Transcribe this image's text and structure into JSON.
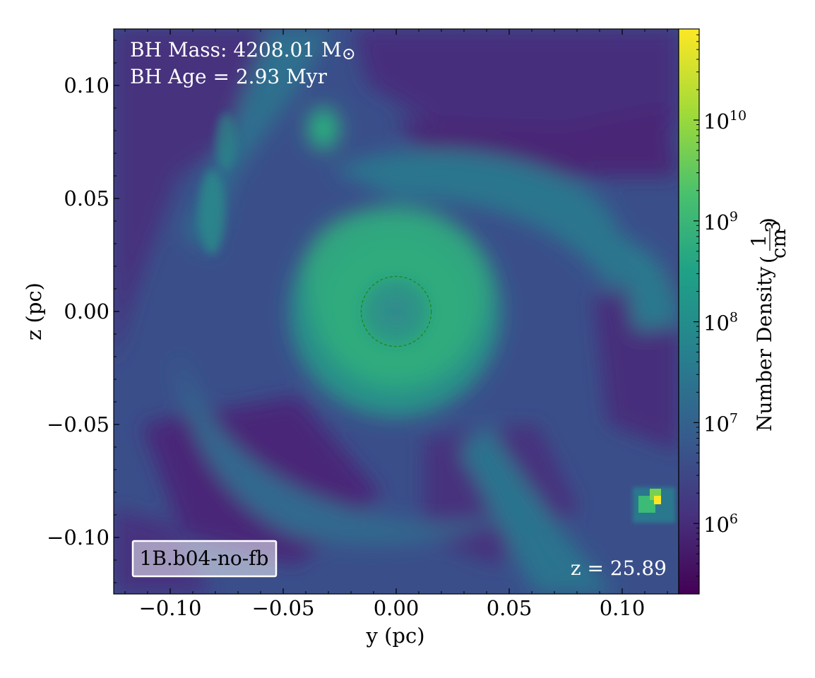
{
  "chart_data": {
    "type": "heatmap",
    "xlabel": "y  (pc)",
    "ylabel": "z  (pc)",
    "xlim": [
      -0.125,
      0.125
    ],
    "ylim": [
      -0.125,
      0.125
    ],
    "x_ticks": [
      -0.1,
      -0.05,
      0.0,
      0.05,
      0.1
    ],
    "x_tick_labels": [
      "−0.10",
      "−0.05",
      "0.00",
      "0.05",
      "0.10"
    ],
    "y_ticks": [
      0.1,
      0.05,
      0.0,
      -0.05,
      -0.1
    ],
    "y_tick_labels": [
      "0.10",
      "0.05",
      "0.00",
      "−0.05",
      "−0.10"
    ],
    "colorbar": {
      "label": "Number Density",
      "unit_numerator": "1",
      "unit_denominator": "cm",
      "unit_denominator_exp": "3",
      "scale": "log",
      "range": [
        200000,
        80000000000
      ],
      "tick_base": "10",
      "tick_exponents": [
        6,
        7,
        8,
        9,
        10
      ],
      "colormap": "viridis"
    },
    "annotations": {
      "bh_mass_prefix": "BH Mass: 4208.01 M",
      "bh_mass_symbol": "⊙",
      "bh_age": "BH Age = 2.93 Myr",
      "simulation_label": "1B.b04-no-fb",
      "redshift": "z = 25.89"
    },
    "marker": {
      "type": "dashed-circle",
      "center": [
        0.0,
        0.0
      ],
      "radius_pc": 0.0155,
      "color": "#1a8a1a"
    },
    "density_features": [
      {
        "name": "inner-ring",
        "center": [
          0.0,
          0.0
        ],
        "radius": 0.042,
        "log_density": 8.9
      },
      {
        "name": "clump-top",
        "center": [
          -0.032,
          0.082
        ],
        "log_density": 8.7
      },
      {
        "name": "clump-bottom-right",
        "center": [
          0.114,
          -0.085
        ],
        "log_density": 10.7
      }
    ]
  }
}
